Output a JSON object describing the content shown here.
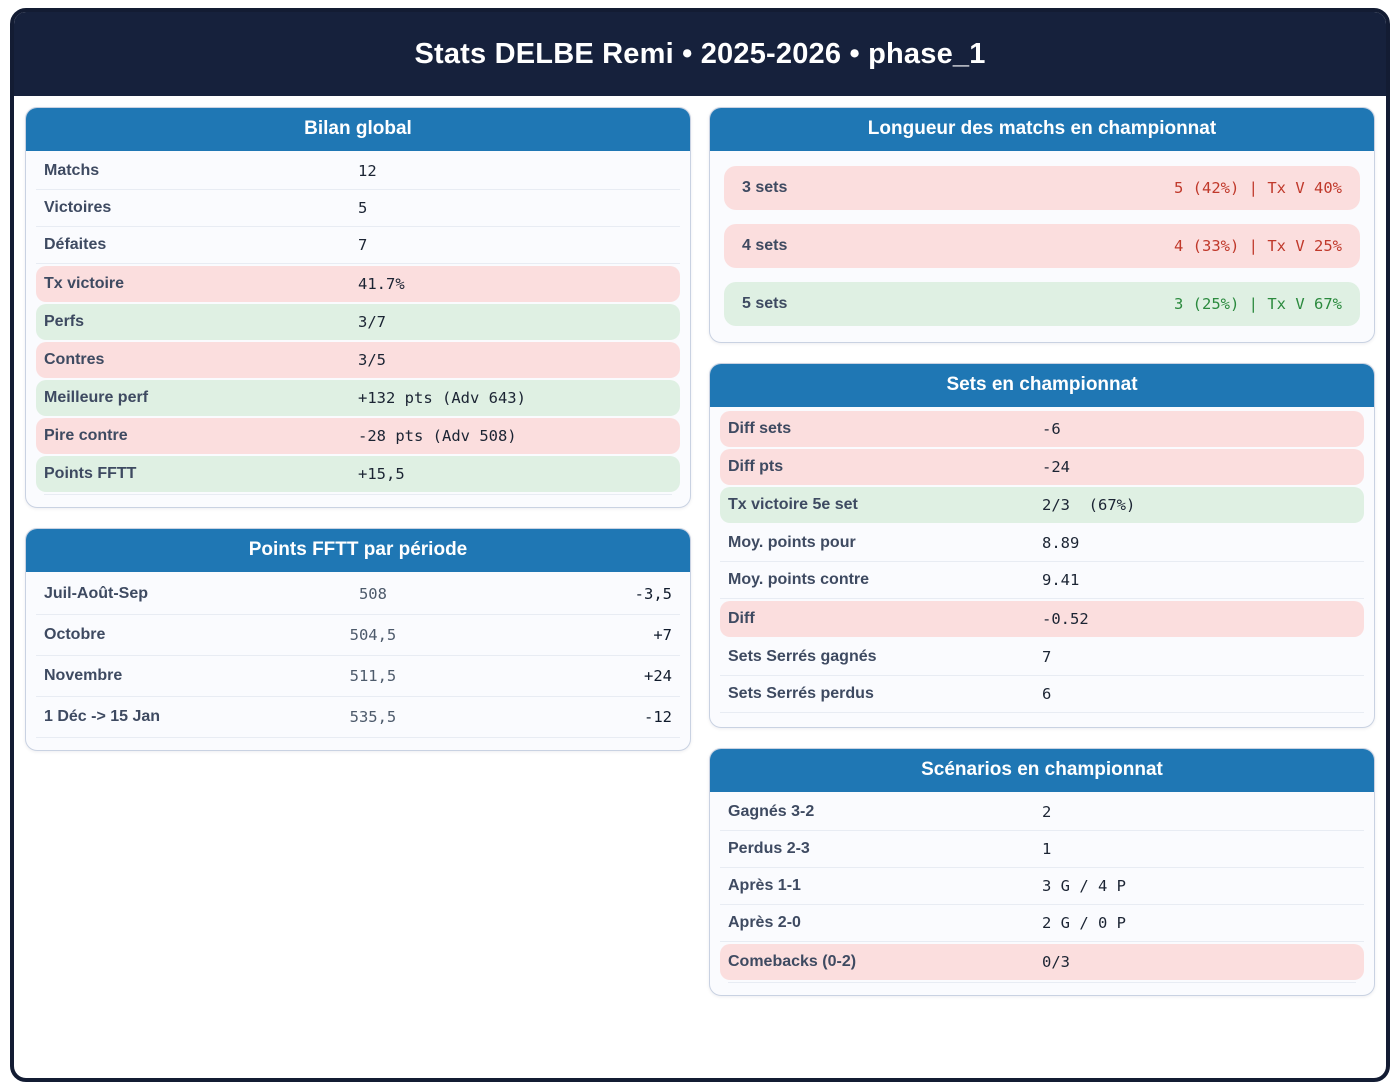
{
  "header": {
    "title": "Stats DELBE Remi • 2025-2026 • phase_1"
  },
  "colors": {
    "header_navy": "#16213c",
    "card_header_blue": "#1f77b4",
    "negative_bg": "#fbdede",
    "negative_text": "#c0392b",
    "positive_bg": "#dff0e3",
    "positive_text": "#2b8a3e"
  },
  "cards": {
    "bilan": {
      "title": "Bilan global",
      "rows": [
        {
          "label": "Matchs",
          "value": "12",
          "highlight": "none"
        },
        {
          "label": "Victoires",
          "value": "5",
          "highlight": "none"
        },
        {
          "label": "Défaites",
          "value": "7",
          "highlight": "none"
        },
        {
          "label": "Tx victoire",
          "value": "41.7%",
          "highlight": "pink"
        },
        {
          "label": "Perfs",
          "value": "3/7",
          "highlight": "green"
        },
        {
          "label": "Contres",
          "value": "3/5",
          "highlight": "pink"
        },
        {
          "label": "Meilleure perf",
          "value": "+132 pts (Adv 643)",
          "highlight": "green"
        },
        {
          "label": "Pire contre",
          "value": "-28 pts (Adv 508)",
          "highlight": "pink"
        },
        {
          "label": "Points FFTT",
          "value": "+15,5",
          "highlight": "green"
        }
      ]
    },
    "periode": {
      "title": "Points FFTT par période",
      "rows": [
        {
          "label": "Juil-Août-Sep",
          "mid": "508",
          "right": "-3,5"
        },
        {
          "label": "Octobre",
          "mid": "504,5",
          "right": "+7"
        },
        {
          "label": "Novembre",
          "mid": "511,5",
          "right": "+24"
        },
        {
          "label": "1 Déc -> 15 Jan",
          "mid": "535,5",
          "right": "-12"
        }
      ]
    },
    "longueur": {
      "title": "Longueur des matchs en championnat",
      "rows": [
        {
          "label": "3 sets",
          "value": "5 (42%) | Tx V 40%",
          "tone": "red"
        },
        {
          "label": "4 sets",
          "value": "4 (33%) | Tx V 25%",
          "tone": "red"
        },
        {
          "label": "5 sets",
          "value": "3 (25%) | Tx V 67%",
          "tone": "green"
        }
      ]
    },
    "sets": {
      "title": "Sets en championnat",
      "rows": [
        {
          "label": "Diff sets",
          "value": "-6",
          "highlight": "pink"
        },
        {
          "label": "Diff pts",
          "value": "-24",
          "highlight": "pink"
        },
        {
          "label": "Tx victoire 5e set",
          "value": "2/3  (67%)",
          "highlight": "green"
        },
        {
          "label": "Moy. points pour",
          "value": "8.89",
          "highlight": "none"
        },
        {
          "label": "Moy. points contre",
          "value": "9.41",
          "highlight": "none"
        },
        {
          "label": "Diff",
          "value": "-0.52",
          "highlight": "pink"
        },
        {
          "label": "Sets Serrés gagnés",
          "value": "7",
          "highlight": "none"
        },
        {
          "label": "Sets Serrés perdus",
          "value": "6",
          "highlight": "none"
        }
      ]
    },
    "scenarios": {
      "title": "Scénarios en championnat",
      "rows": [
        {
          "label": "Gagnés 3-2",
          "value": "2",
          "highlight": "none"
        },
        {
          "label": "Perdus 2-3",
          "value": "1",
          "highlight": "none"
        },
        {
          "label": "Après 1-1",
          "value": "3 G / 4 P",
          "highlight": "none"
        },
        {
          "label": "Après 2-0",
          "value": "2 G / 0 P",
          "highlight": "none"
        },
        {
          "label": "Comebacks (0-2)",
          "value": "0/3",
          "highlight": "pink"
        }
      ]
    }
  }
}
